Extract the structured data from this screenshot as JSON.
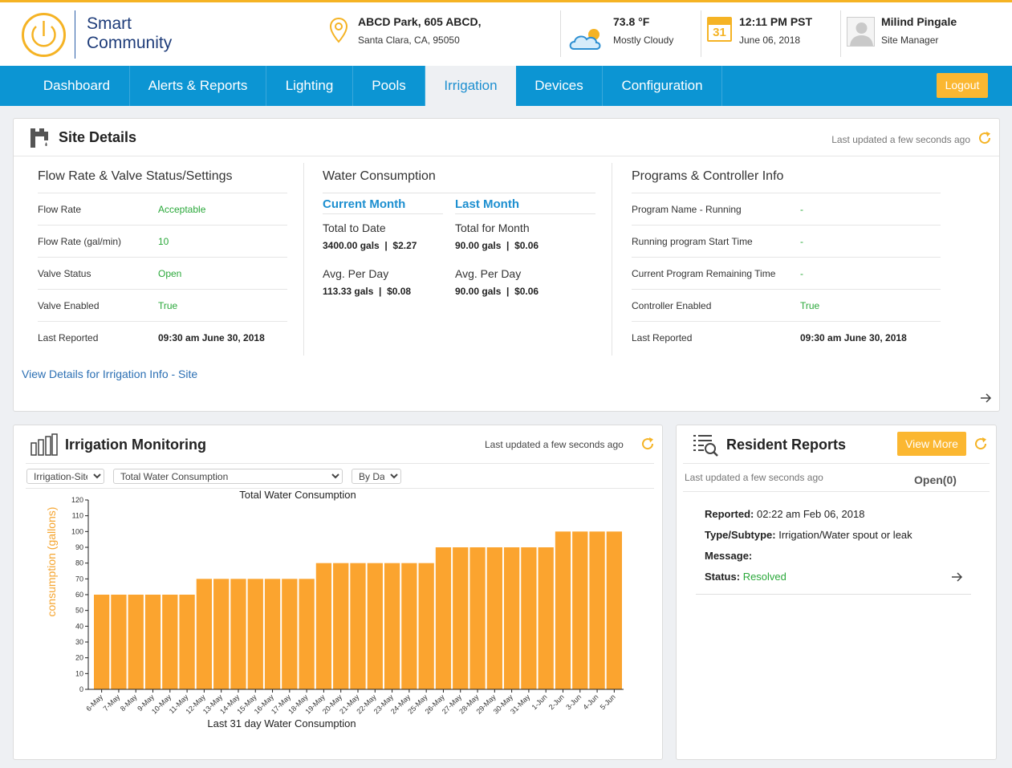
{
  "header": {
    "logo_line1": "Smart",
    "logo_line2": "Community",
    "location_name": "ABCD Park, 605 ABCD,",
    "location_address": "Santa Clara, CA, 95050",
    "temperature": "73.8 °F",
    "weather": "Mostly Cloudy",
    "time": "12:11 PM PST",
    "date": "June 06, 2018",
    "calendar_day": "31",
    "user_name": "Milind Pingale",
    "user_role": "Site Manager"
  },
  "nav": {
    "items": [
      "Dashboard",
      "Alerts & Reports",
      "Lighting",
      "Pools",
      "Irrigation",
      "Devices",
      "Configuration"
    ],
    "logout": "Logout"
  },
  "site_details": {
    "title": "Site Details",
    "updated": "Last updated a few seconds ago",
    "flow": {
      "title": "Flow Rate & Valve Status/Settings",
      "rows": [
        {
          "label": "Flow Rate",
          "value": "Acceptable"
        },
        {
          "label": "Flow Rate (gal/min)",
          "value": "10"
        },
        {
          "label": "Valve Status",
          "value": "Open"
        },
        {
          "label": "Valve Enabled",
          "value": "True"
        },
        {
          "label": "Last Reported",
          "value": "09:30 am June 30, 2018"
        }
      ]
    },
    "water": {
      "title": "Water Consumption",
      "current_head": "Current Month",
      "last_head": "Last Month",
      "current_total_label": "Total to Date",
      "current_total_value": "3400.00 gals  |  $2.27",
      "current_avg_label": "Avg. Per Day",
      "current_avg_value": "113.33 gals  |  $0.08",
      "last_total_label": "Total for Month",
      "last_total_value": "90.00 gals  |  $0.06",
      "last_avg_label": "Avg. Per Day",
      "last_avg_value": "90.00 gals  |  $0.06"
    },
    "programs": {
      "title": "Programs & Controller Info",
      "rows": [
        {
          "label": "Program Name - Running",
          "value": "-"
        },
        {
          "label": "Running program Start Time",
          "value": "-"
        },
        {
          "label": "Current Program Remaining Time",
          "value": "-"
        },
        {
          "label": "Controller Enabled",
          "value": "True"
        },
        {
          "label": "Last Reported",
          "value": "09:30 am June 30, 2018"
        }
      ]
    },
    "details_link": "View Details for Irrigation Info - Site"
  },
  "monitoring": {
    "title": "Irrigation Monitoring",
    "updated": "Last updated a few seconds ago",
    "filters": {
      "site": "Irrigation-Site",
      "metric": "Total Water Consumption",
      "period": "By Day"
    }
  },
  "chart_data": {
    "type": "bar",
    "title": "Total Water Consumption",
    "xlabel": "Last 31 day Water Consumption",
    "ylabel": "consumption (gallons)",
    "ylim": [
      0,
      120
    ],
    "yticks": [
      0,
      10,
      20,
      30,
      40,
      50,
      60,
      70,
      80,
      90,
      100,
      110,
      120
    ],
    "categories": [
      "6-May",
      "7-May",
      "8-May",
      "9-May",
      "10-May",
      "11-May",
      "12-May",
      "13-May",
      "14-May",
      "15-May",
      "16-May",
      "17-May",
      "18-May",
      "19-May",
      "20-May",
      "21-May",
      "22-May",
      "23-May",
      "24-May",
      "25-May",
      "26-May",
      "27-May",
      "28-May",
      "29-May",
      "30-May",
      "31-May",
      "1-Jun",
      "2-Jun",
      "3-Jun",
      "4-Jun",
      "5-Jun"
    ],
    "values": [
      60,
      60,
      60,
      60,
      60,
      60,
      70,
      70,
      70,
      70,
      70,
      70,
      70,
      80,
      80,
      80,
      80,
      80,
      80,
      80,
      90,
      90,
      90,
      90,
      90,
      90,
      90,
      100,
      100,
      100,
      100
    ],
    "color": "#fba42f",
    "grid": false
  },
  "resident": {
    "title": "Resident Reports",
    "view_more": "View More",
    "updated": "Last updated a few seconds ago",
    "open_count": "Open(0)",
    "report": {
      "reported_label": "Reported:",
      "reported_value": "02:22 am Feb 06, 2018",
      "type_label": "Type/Subtype:",
      "type_value": "Irrigation/Water spout or leak",
      "message_label": "Message:",
      "message_value": "",
      "status_label": "Status:",
      "status_value": "Resolved"
    }
  },
  "colors": {
    "nav": "#0c95d3",
    "accent": "#fbb731",
    "link": "#1d8fd0",
    "ok": "#2aa83a"
  }
}
